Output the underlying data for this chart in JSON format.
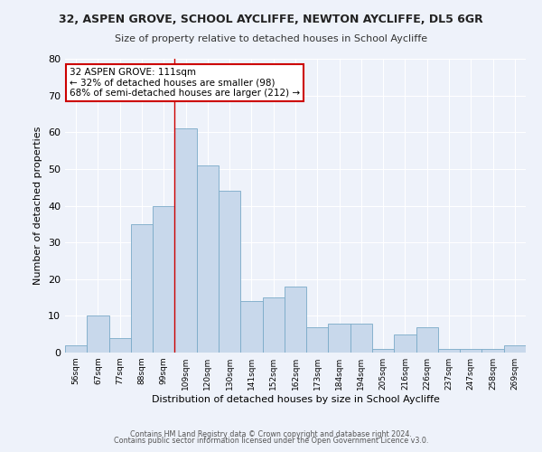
{
  "title": "32, ASPEN GROVE, SCHOOL AYCLIFFE, NEWTON AYCLIFFE, DL5 6GR",
  "subtitle": "Size of property relative to detached houses in School Aycliffe",
  "xlabel": "Distribution of detached houses by size in School Aycliffe",
  "ylabel": "Number of detached properties",
  "bar_color": "#c8d8eb",
  "bar_edge_color": "#7aaac8",
  "background_color": "#eef2fa",
  "grid_color": "#ffffff",
  "categories": [
    "56sqm",
    "67sqm",
    "77sqm",
    "88sqm",
    "99sqm",
    "109sqm",
    "120sqm",
    "130sqm",
    "141sqm",
    "152sqm",
    "162sqm",
    "173sqm",
    "184sqm",
    "194sqm",
    "205sqm",
    "216sqm",
    "226sqm",
    "237sqm",
    "247sqm",
    "258sqm",
    "269sqm"
  ],
  "values": [
    2,
    10,
    4,
    35,
    40,
    61,
    51,
    44,
    14,
    15,
    18,
    7,
    8,
    8,
    1,
    5,
    7,
    1,
    1,
    1,
    2
  ],
  "ylim": [
    0,
    80
  ],
  "yticks": [
    0,
    10,
    20,
    30,
    40,
    50,
    60,
    70,
    80
  ],
  "property_bin_index": 5,
  "annotation_title": "32 ASPEN GROVE: 111sqm",
  "annotation_line1": "← 32% of detached houses are smaller (98)",
  "annotation_line2": "68% of semi-detached houses are larger (212) →",
  "vline_color": "#cc0000",
  "footer_line1": "Contains HM Land Registry data © Crown copyright and database right 2024.",
  "footer_line2": "Contains public sector information licensed under the Open Government Licence v3.0."
}
